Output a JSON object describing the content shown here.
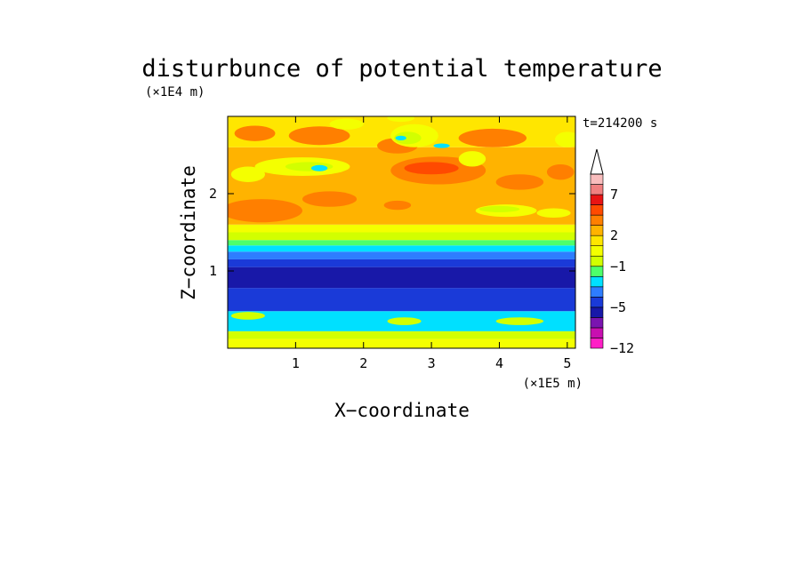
{
  "chart_data": {
    "type": "heatmap",
    "title": "disturbunce of potential temperature",
    "time_label": "t=214200 s",
    "xlabel": "X−coordinate",
    "ylabel": "Z−coordinate",
    "x_unit": "(×1E5 m)",
    "y_unit": "(×1E4 m)",
    "xlim": [
      0,
      5.12
    ],
    "ylim": [
      0,
      3.0
    ],
    "x_ticks": [
      1,
      2,
      3,
      4,
      5
    ],
    "x_tick_labels": [
      "1",
      "2",
      "3",
      "4",
      "5"
    ],
    "y_ticks": [
      1,
      2
    ],
    "y_tick_labels": [
      "1",
      "2"
    ],
    "colorbar": {
      "levels": [
        -12,
        -11,
        -9,
        -7,
        -5,
        -4,
        -3,
        -2,
        -1,
        0,
        1,
        2,
        3,
        4,
        5,
        7,
        9,
        11
      ],
      "tick_values": [
        -12,
        -5,
        -1,
        2,
        7
      ],
      "tick_labels": [
        "−12",
        "−5",
        "−1",
        "2",
        "7"
      ],
      "colors": [
        "#ff1fc6",
        "#c80fb0",
        "#7a14b0",
        "#1818a8",
        "#1a3ad8",
        "#2e7dff",
        "#00e0ff",
        "#4dff6a",
        "#d2ff00",
        "#f4ff00",
        "#ffe600",
        "#ffb300",
        "#ff7f00",
        "#ff4a00",
        "#e81414",
        "#f08080",
        "#f9bdbd"
      ],
      "extend_top": true
    },
    "layers": [
      {
        "z_range": [
          0.0,
          0.12
        ],
        "value": 0.5
      },
      {
        "z_range": [
          0.12,
          0.22
        ],
        "value": -0.5
      },
      {
        "z_range": [
          0.22,
          0.48
        ],
        "value": -2.5
      },
      {
        "z_range": [
          0.48,
          0.78
        ],
        "value": -4.5
      },
      {
        "z_range": [
          0.78,
          1.05
        ],
        "value": -6
      },
      {
        "z_range": [
          1.05,
          1.15
        ],
        "value": -4.5
      },
      {
        "z_range": [
          1.15,
          1.25
        ],
        "value": -3.5
      },
      {
        "z_range": [
          1.25,
          1.33
        ],
        "value": -2.5
      },
      {
        "z_range": [
          1.33,
          1.4
        ],
        "value": -1.5
      },
      {
        "z_range": [
          1.4,
          1.5
        ],
        "value": -0.5
      },
      {
        "z_range": [
          1.5,
          1.6
        ],
        "value": 0.5
      },
      {
        "z_range": [
          1.6,
          2.6
        ],
        "value": 2.5
      },
      {
        "z_range": [
          2.6,
          3.0
        ],
        "value": 1.5
      }
    ],
    "features": [
      {
        "x": 2.6,
        "z": 0.35,
        "rx": 0.25,
        "rz": 0.05,
        "value": -0.5
      },
      {
        "x": 4.3,
        "z": 0.35,
        "rx": 0.35,
        "rz": 0.05,
        "value": -0.5
      },
      {
        "x": 0.3,
        "z": 0.42,
        "rx": 0.25,
        "rz": 0.05,
        "value": -0.5
      },
      {
        "x": 0.5,
        "z": 1.78,
        "rx": 0.6,
        "rz": 0.15,
        "value": 3.5
      },
      {
        "x": 2.5,
        "z": 1.85,
        "rx": 0.2,
        "rz": 0.06,
        "value": 3.5
      },
      {
        "x": 1.5,
        "z": 1.93,
        "rx": 0.4,
        "rz": 0.1,
        "value": 3.5
      },
      {
        "x": 3.1,
        "z": 2.3,
        "rx": 0.7,
        "rz": 0.18,
        "value": 3.5
      },
      {
        "x": 3.0,
        "z": 2.33,
        "rx": 0.4,
        "rz": 0.08,
        "value": 4.5
      },
      {
        "x": 4.3,
        "z": 2.15,
        "rx": 0.35,
        "rz": 0.1,
        "value": 3.5
      },
      {
        "x": 4.9,
        "z": 2.28,
        "rx": 0.2,
        "rz": 0.1,
        "value": 3.5
      },
      {
        "x": 0.4,
        "z": 2.78,
        "rx": 0.3,
        "rz": 0.1,
        "value": 3.5
      },
      {
        "x": 1.35,
        "z": 2.75,
        "rx": 0.45,
        "rz": 0.12,
        "value": 3.5
      },
      {
        "x": 2.5,
        "z": 2.62,
        "rx": 0.3,
        "rz": 0.1,
        "value": 3.5
      },
      {
        "x": 3.9,
        "z": 2.72,
        "rx": 0.5,
        "rz": 0.12,
        "value": 3.5
      },
      {
        "x": 4.1,
        "z": 1.78,
        "rx": 0.45,
        "rz": 0.08,
        "value": 0.5
      },
      {
        "x": 4.0,
        "z": 1.8,
        "rx": 0.3,
        "rz": 0.04,
        "value": -0.5
      },
      {
        "x": 4.8,
        "z": 1.75,
        "rx": 0.25,
        "rz": 0.06,
        "value": 0.5
      },
      {
        "x": 0.3,
        "z": 2.25,
        "rx": 0.25,
        "rz": 0.1,
        "value": 0.5
      },
      {
        "x": 1.1,
        "z": 2.35,
        "rx": 0.7,
        "rz": 0.12,
        "value": 0.5
      },
      {
        "x": 1.2,
        "z": 2.35,
        "rx": 0.35,
        "rz": 0.06,
        "value": -0.5
      },
      {
        "x": 1.35,
        "z": 2.33,
        "rx": 0.12,
        "rz": 0.04,
        "value": -2.5
      },
      {
        "x": 2.75,
        "z": 2.75,
        "rx": 0.35,
        "rz": 0.15,
        "value": 0.5
      },
      {
        "x": 2.65,
        "z": 2.72,
        "rx": 0.2,
        "rz": 0.08,
        "value": -0.5
      },
      {
        "x": 2.55,
        "z": 2.72,
        "rx": 0.08,
        "rz": 0.03,
        "value": -2.5
      },
      {
        "x": 3.15,
        "z": 2.62,
        "rx": 0.12,
        "rz": 0.03,
        "value": -2.5
      },
      {
        "x": 3.6,
        "z": 2.45,
        "rx": 0.2,
        "rz": 0.1,
        "value": 0.5
      },
      {
        "x": 5.0,
        "z": 2.7,
        "rx": 0.18,
        "rz": 0.1,
        "value": 0.5
      },
      {
        "x": 1.75,
        "z": 2.9,
        "rx": 0.25,
        "rz": 0.07,
        "value": 0.5
      },
      {
        "x": 2.55,
        "z": 2.98,
        "rx": 0.2,
        "rz": 0.05,
        "value": 0.5
      }
    ]
  }
}
